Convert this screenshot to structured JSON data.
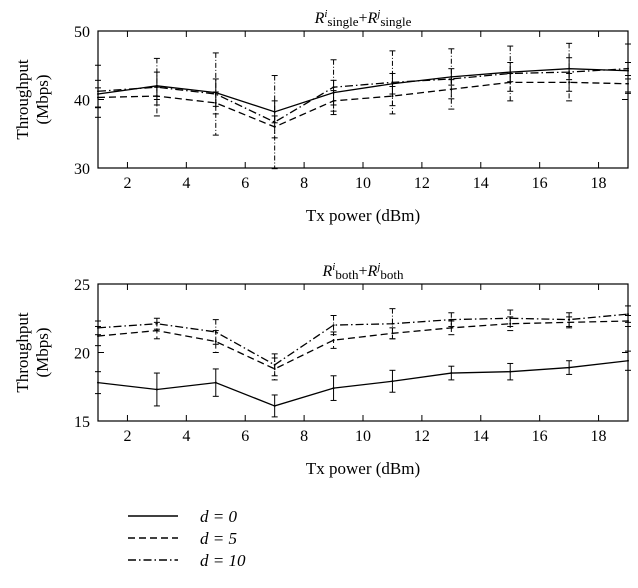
{
  "chart_data": [
    {
      "type": "line",
      "title_parts": {
        "base1": "R",
        "sup1": "i",
        "sub1": "single",
        "plus": "+",
        "base2": "R",
        "sup2": "j",
        "sub2": "single"
      },
      "xlabel": "Tx power (dBm)",
      "ylabel": [
        "Throughput",
        "(Mbps)"
      ],
      "xlim": [
        1,
        19
      ],
      "ylim": [
        30,
        50
      ],
      "xticks": [
        2,
        4,
        6,
        8,
        10,
        12,
        14,
        16,
        18
      ],
      "yticks": [
        30,
        40,
        50
      ],
      "x": [
        1,
        3,
        5,
        7,
        9,
        11,
        13,
        15,
        17,
        19
      ],
      "series": [
        {
          "key": "d0",
          "style": "solid",
          "values": [
            40.8,
            42.0,
            41.0,
            38.2,
            41.0,
            42.3,
            43.3,
            44.0,
            44.5,
            44.2
          ],
          "err": [
            2.0,
            2.0,
            2.0,
            1.6,
            1.8,
            1.5,
            1.2,
            1.4,
            1.6,
            1.2
          ]
        },
        {
          "key": "d5",
          "style": "dashed",
          "values": [
            40.3,
            40.5,
            39.5,
            36.0,
            39.8,
            40.5,
            41.5,
            42.5,
            42.5,
            42.3
          ],
          "err": [
            1.4,
            1.3,
            1.6,
            1.6,
            1.5,
            1.4,
            1.4,
            1.3,
            1.3,
            1.2
          ]
        },
        {
          "key": "d10",
          "style": "dashdot",
          "values": [
            41.2,
            41.8,
            40.8,
            36.7,
            41.8,
            42.5,
            43.0,
            43.8,
            44.0,
            44.5
          ],
          "err": [
            3.8,
            4.2,
            6.0,
            6.8,
            4.0,
            4.6,
            4.4,
            4.0,
            4.2,
            3.6
          ]
        }
      ]
    },
    {
      "type": "line",
      "title_parts": {
        "base1": "R",
        "sup1": "i",
        "sub1": "both",
        "plus": "+",
        "base2": "R",
        "sup2": "j",
        "sub2": "both"
      },
      "xlabel": "Tx power (dBm)",
      "ylabel": [
        "Throughput",
        "(Mbps)"
      ],
      "xlim": [
        1,
        19
      ],
      "ylim": [
        15,
        25
      ],
      "xticks": [
        2,
        4,
        6,
        8,
        10,
        12,
        14,
        16,
        18
      ],
      "yticks": [
        15,
        20,
        25
      ],
      "x": [
        1,
        3,
        5,
        7,
        9,
        11,
        13,
        15,
        17,
        19
      ],
      "series": [
        {
          "key": "d0",
          "style": "solid",
          "values": [
            17.8,
            17.3,
            17.8,
            16.1,
            17.4,
            17.9,
            18.5,
            18.6,
            18.9,
            19.4
          ],
          "err": [
            0.8,
            1.2,
            1.0,
            0.8,
            0.9,
            0.8,
            0.5,
            0.6,
            0.5,
            0.7
          ]
        },
        {
          "key": "d5",
          "style": "dashed",
          "values": [
            21.2,
            21.6,
            20.8,
            18.8,
            20.9,
            21.4,
            21.8,
            22.1,
            22.2,
            22.3
          ],
          "err": [
            0.7,
            0.6,
            0.8,
            0.8,
            0.6,
            0.4,
            0.5,
            0.5,
            0.4,
            0.4
          ]
        },
        {
          "key": "d10",
          "style": "dashdot",
          "values": [
            21.8,
            22.1,
            21.5,
            19.1,
            22.0,
            22.1,
            22.4,
            22.5,
            22.4,
            22.8
          ],
          "err": [
            0.5,
            0.4,
            0.9,
            0.8,
            0.7,
            1.1,
            0.5,
            0.6,
            0.5,
            0.6
          ]
        }
      ]
    }
  ],
  "legend": [
    {
      "key": "d0",
      "style": "solid",
      "label": "d = 0"
    },
    {
      "key": "d5",
      "style": "dashed",
      "label": "d = 5"
    },
    {
      "key": "d10",
      "style": "dashdot",
      "label": "d = 10"
    }
  ]
}
